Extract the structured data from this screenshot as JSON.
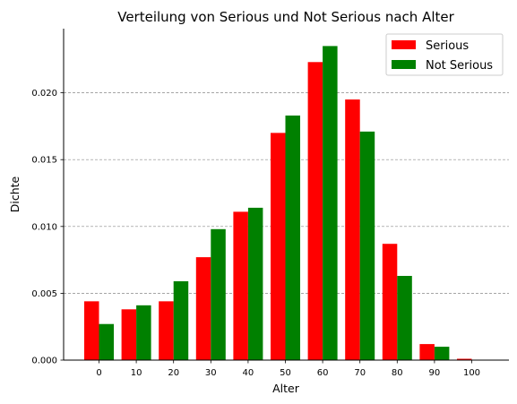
{
  "chart_data": {
    "type": "bar",
    "title": "Verteilung von Serious und Not Serious nach Alter",
    "xlabel": "Alter",
    "ylabel": "Dichte",
    "categories": [
      "0",
      "10",
      "20",
      "30",
      "40",
      "50",
      "60",
      "70",
      "80",
      "90",
      "100"
    ],
    "series": [
      {
        "name": "Serious",
        "color": "#ff0000",
        "values": [
          0.0044,
          0.0038,
          0.0044,
          0.0077,
          0.0111,
          0.017,
          0.0223,
          0.0195,
          0.0087,
          0.0012,
          0.0001
        ]
      },
      {
        "name": "Not Serious",
        "color": "#008000",
        "values": [
          0.0027,
          0.0041,
          0.0059,
          0.0098,
          0.0114,
          0.0183,
          0.0235,
          0.0171,
          0.0063,
          0.001,
          0.0
        ]
      }
    ],
    "yticks": [
      "0.000",
      "0.005",
      "0.010",
      "0.015",
      "0.020"
    ],
    "ylim": [
      0,
      0.0248
    ],
    "grid": "horizontal dashed",
    "legend_position": "top-right"
  }
}
